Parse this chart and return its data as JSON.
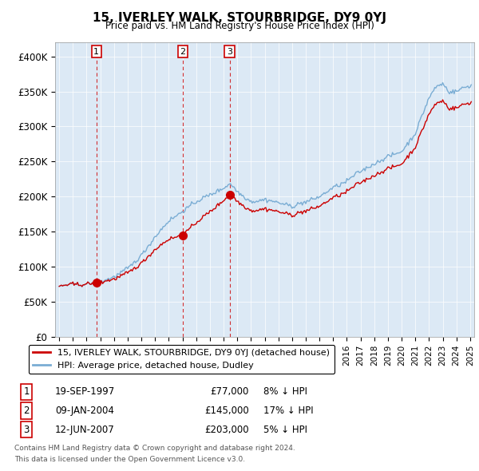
{
  "title": "15, IVERLEY WALK, STOURBRIDGE, DY9 0YJ",
  "subtitle": "Price paid vs. HM Land Registry's House Price Index (HPI)",
  "background_color": "#ffffff",
  "plot_bg_color": "#dce9f5",
  "grid_color": "#ffffff",
  "hpi_color": "#7aadd4",
  "price_color": "#cc0000",
  "sales": [
    {
      "date_num": 1997.72,
      "price": 77000,
      "label": "1"
    },
    {
      "date_num": 2004.03,
      "price": 145000,
      "label": "2"
    },
    {
      "date_num": 2007.44,
      "price": 203000,
      "label": "3"
    }
  ],
  "sale_dates_str": [
    "19-SEP-1997",
    "09-JAN-2004",
    "12-JUN-2007"
  ],
  "sale_prices_str": [
    "£77,000",
    "£145,000",
    "£203,000"
  ],
  "sale_hpi_str": [
    "8% ↓ HPI",
    "17% ↓ HPI",
    "5% ↓ HPI"
  ],
  "legend_line1": "15, IVERLEY WALK, STOURBRIDGE, DY9 0YJ (detached house)",
  "legend_line2": "HPI: Average price, detached house, Dudley",
  "footnote1": "Contains HM Land Registry data © Crown copyright and database right 2024.",
  "footnote2": "This data is licensed under the Open Government Licence v3.0.",
  "ylim": [
    0,
    420000
  ],
  "yticks": [
    0,
    50000,
    100000,
    150000,
    200000,
    250000,
    300000,
    350000,
    400000
  ],
  "ytick_labels": [
    "£0",
    "£50K",
    "£100K",
    "£150K",
    "£200K",
    "£250K",
    "£300K",
    "£350K",
    "£400K"
  ],
  "xlim_start": 1994.7,
  "xlim_end": 2025.3
}
